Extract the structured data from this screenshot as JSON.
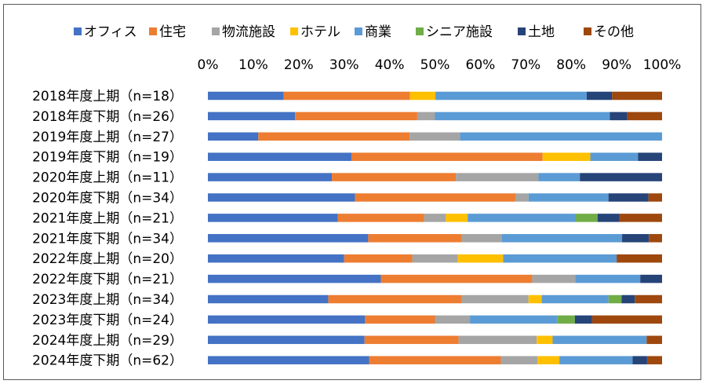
{
  "chart_data": {
    "type": "bar",
    "orientation": "horizontal",
    "stacked": "percent",
    "title": "",
    "xlabel": "",
    "ylabel": "",
    "xlim": [
      0,
      100
    ],
    "x_ticks": [
      "0%",
      "10%",
      "20%",
      "30%",
      "40%",
      "50%",
      "60%",
      "70%",
      "80%",
      "90%",
      "100%"
    ],
    "grid": false,
    "legend_position": "top",
    "categories": [
      "2018年度上期（n=18）",
      "2018年度下期（n=26）",
      "2019年度上期（n=27）",
      "2019年度下期（n=19）",
      "2020年度上期（n=11）",
      "2020年度下期（n=34）",
      "2021年度上期（n=21）",
      "2021年度下期（n=34）",
      "2022年度上期（n=20）",
      "2022年度下期（n=21）",
      "2023年度上期（n=34）",
      "2023年度下期（n=24）",
      "2024年度上期（n=29）",
      "2024年度下期（n=62）"
    ],
    "series": [
      {
        "name": "オフィス",
        "color": "#4472C4",
        "values": [
          16.7,
          19.2,
          11.1,
          31.6,
          27.3,
          32.4,
          28.6,
          35.3,
          30.0,
          38.1,
          26.5,
          34.6,
          34.5,
          35.5
        ]
      },
      {
        "name": "住宅",
        "color": "#ED7D31",
        "values": [
          27.8,
          26.9,
          33.3,
          42.1,
          27.3,
          35.3,
          19.0,
          20.6,
          15.0,
          33.3,
          29.4,
          15.4,
          20.7,
          29.0
        ]
      },
      {
        "name": "物流施設",
        "color": "#A5A5A5",
        "values": [
          0,
          3.9,
          11.1,
          0,
          18.2,
          2.9,
          4.8,
          8.8,
          10.0,
          9.5,
          14.7,
          7.7,
          17.2,
          8.1
        ]
      },
      {
        "name": "ホテル",
        "color": "#FFC000",
        "values": [
          5.6,
          0,
          0,
          10.5,
          0,
          0,
          4.8,
          0,
          10.0,
          0,
          2.9,
          0,
          3.5,
          4.8
        ]
      },
      {
        "name": "商業",
        "color": "#5B9BD5",
        "values": [
          33.3,
          38.5,
          44.5,
          10.5,
          9.1,
          17.6,
          23.8,
          26.5,
          25.0,
          14.3,
          14.7,
          19.2,
          20.7,
          16.1
        ]
      },
      {
        "name": "シニア施設",
        "color": "#70AD47",
        "values": [
          0,
          0,
          0,
          0,
          0,
          0,
          4.8,
          0,
          0,
          0,
          2.9,
          3.9,
          0,
          0
        ]
      },
      {
        "name": "土地",
        "color": "#264478",
        "values": [
          5.6,
          3.8,
          0,
          5.3,
          18.1,
          8.8,
          4.8,
          5.9,
          0,
          4.8,
          2.9,
          3.8,
          0,
          3.2
        ]
      },
      {
        "name": "その他",
        "color": "#9E480E",
        "values": [
          11.0,
          7.7,
          0,
          0,
          0,
          3.0,
          9.4,
          2.9,
          10.0,
          0,
          6.0,
          15.4,
          3.4,
          3.3
        ]
      }
    ]
  }
}
